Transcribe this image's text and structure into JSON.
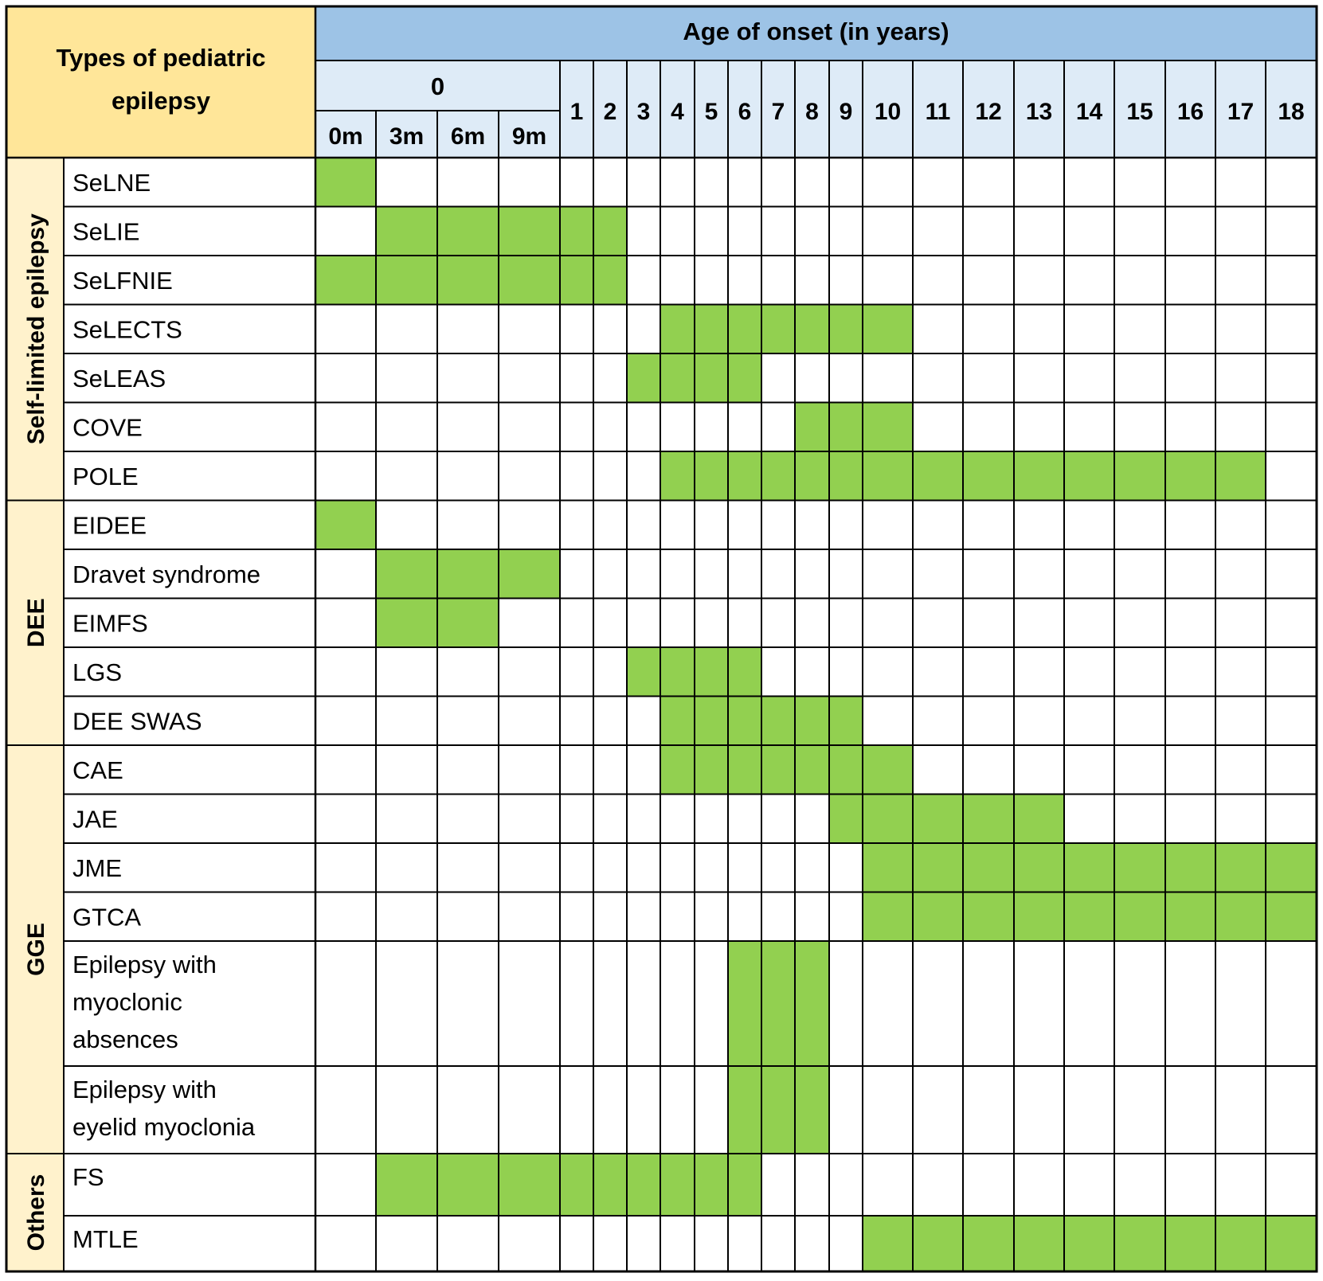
{
  "chart_data": {
    "type": "table",
    "corner_header": [
      "Types of pediatric",
      "epilepsy"
    ],
    "axis_title": "Age of onset (in years)",
    "zero_group_label": "0",
    "columns": [
      "0m",
      "3m",
      "6m",
      "9m",
      "1",
      "2",
      "3",
      "4",
      "5",
      "6",
      "7",
      "8",
      "9",
      "10",
      "11",
      "12",
      "13",
      "14",
      "15",
      "16",
      "17",
      "18"
    ],
    "groups": [
      {
        "name": "Self-limited epilepsy",
        "rows": [
          {
            "label": [
              "SeLNE"
            ],
            "onset": [
              "0m"
            ]
          },
          {
            "label": [
              "SeLIE"
            ],
            "onset": [
              "3m",
              "6m",
              "9m",
              "1",
              "2"
            ]
          },
          {
            "label": [
              "SeLFNIE"
            ],
            "onset": [
              "0m",
              "3m",
              "6m",
              "9m",
              "1",
              "2"
            ]
          },
          {
            "label": [
              "SeLECTS"
            ],
            "onset": [
              "4",
              "5",
              "6",
              "7",
              "8",
              "9",
              "10"
            ]
          },
          {
            "label": [
              "SeLEAS"
            ],
            "onset": [
              "3",
              "4",
              "5",
              "6"
            ]
          },
          {
            "label": [
              "COVE"
            ],
            "onset": [
              "8",
              "9",
              "10"
            ]
          },
          {
            "label": [
              "POLE"
            ],
            "onset": [
              "4",
              "5",
              "6",
              "7",
              "8",
              "9",
              "10",
              "11",
              "12",
              "13",
              "14",
              "15",
              "16",
              "17"
            ]
          }
        ]
      },
      {
        "name": "DEE",
        "rows": [
          {
            "label": [
              "EIDEE"
            ],
            "onset": [
              "0m"
            ]
          },
          {
            "label": [
              "Dravet syndrome"
            ],
            "onset": [
              "3m",
              "6m",
              "9m"
            ]
          },
          {
            "label": [
              "EIMFS"
            ],
            "onset": [
              "3m",
              "6m"
            ]
          },
          {
            "label": [
              "LGS"
            ],
            "onset": [
              "3",
              "4",
              "5",
              "6"
            ]
          },
          {
            "label": [
              "DEE SWAS"
            ],
            "onset": [
              "4",
              "5",
              "6",
              "7",
              "8",
              "9"
            ]
          }
        ]
      },
      {
        "name": "GGE",
        "rows": [
          {
            "label": [
              "CAE"
            ],
            "onset": [
              "4",
              "5",
              "6",
              "7",
              "8",
              "9",
              "10"
            ]
          },
          {
            "label": [
              "JAE"
            ],
            "onset": [
              "9",
              "10",
              "11",
              "12",
              "13"
            ]
          },
          {
            "label": [
              "JME"
            ],
            "onset": [
              "10",
              "11",
              "12",
              "13",
              "14",
              "15",
              "16",
              "17",
              "18"
            ]
          },
          {
            "label": [
              "GTCA"
            ],
            "onset": [
              "10",
              "11",
              "12",
              "13",
              "14",
              "15",
              "16",
              "17",
              "18"
            ]
          },
          {
            "label": [
              "Epilepsy with",
              "myoclonic",
              "absences"
            ],
            "onset": [
              "6",
              "7",
              "8"
            ]
          },
          {
            "label": [
              "Epilepsy with",
              "eyelid myoclonia"
            ],
            "onset": [
              "6",
              "7",
              "8"
            ]
          }
        ]
      },
      {
        "name": "Others",
        "rows": [
          {
            "label": [
              "FS"
            ],
            "onset": [
              "3m",
              "6m",
              "9m",
              "1",
              "2",
              "3",
              "4",
              "5",
              "6"
            ]
          },
          {
            "label": [
              "MTLE"
            ],
            "onset": [
              "10",
              "11",
              "12",
              "13",
              "14",
              "15",
              "16",
              "17",
              "18"
            ]
          }
        ]
      }
    ],
    "colors": {
      "corner_header_bg": "#FFE699",
      "group_label_bg": "#FFF2CC",
      "axis_title_bg": "#9DC3E6",
      "column_header_bg": "#DEEBF7",
      "filled_cell": "#92D050",
      "empty_cell": "#FFFFFF",
      "grid_line": "#000000"
    }
  }
}
